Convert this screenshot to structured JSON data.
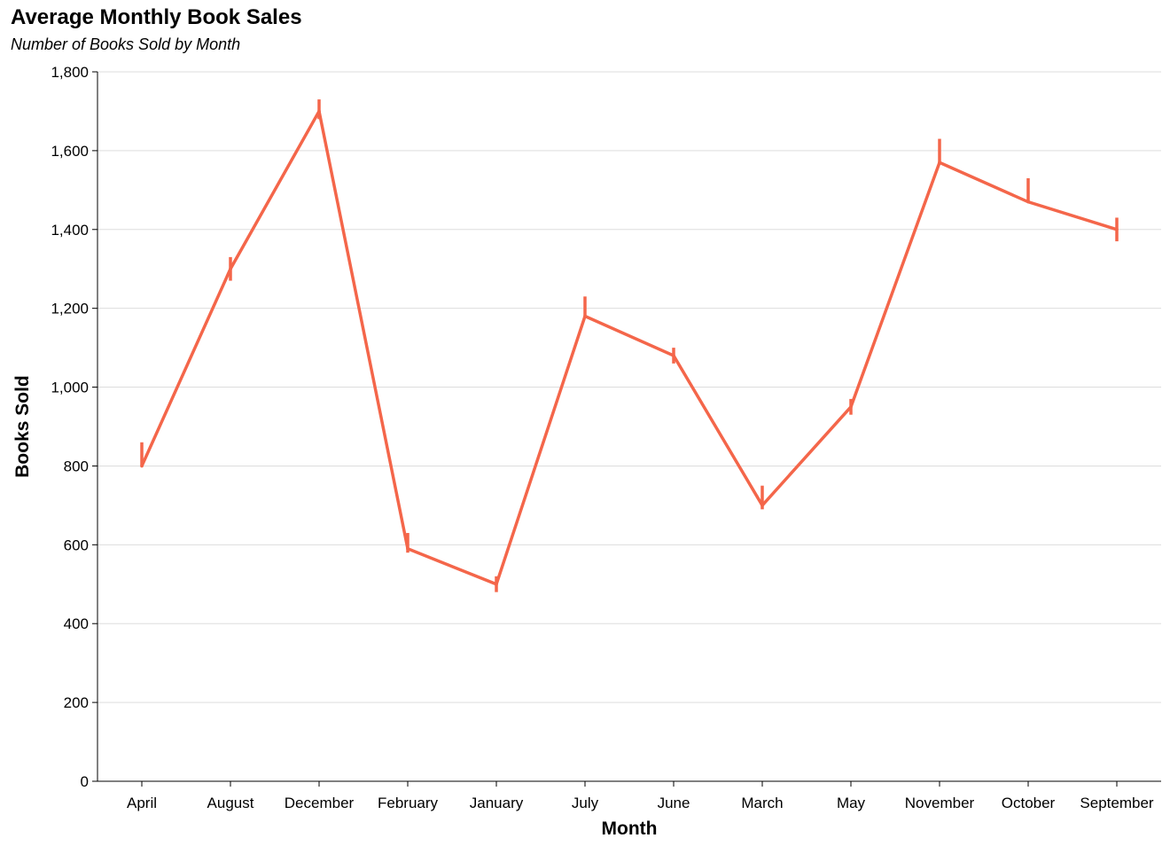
{
  "chart_data": {
    "type": "line",
    "title": "Average Monthly Book Sales",
    "subtitle": "Number of Books Sold by Month",
    "xlabel": "Month",
    "ylabel": "Books Sold",
    "ylim": [
      0,
      1800
    ],
    "y_ticks": [
      0,
      200,
      400,
      600,
      800,
      1000,
      1200,
      1400,
      1600,
      1800
    ],
    "y_tick_labels": [
      "0",
      "200",
      "400",
      "600",
      "800",
      "1,000",
      "1,200",
      "1,400",
      "1,600",
      "1,800"
    ],
    "grid": true,
    "categories": [
      "April",
      "August",
      "December",
      "February",
      "January",
      "July",
      "June",
      "March",
      "May",
      "November",
      "October",
      "September"
    ],
    "series": [
      {
        "values": [
          800,
          1300,
          1700,
          590,
          500,
          1180,
          1080,
          700,
          950,
          1570,
          1470,
          1400
        ],
        "error_high": [
          860,
          1330,
          1730,
          630,
          520,
          1230,
          1100,
          750,
          970,
          1630,
          1530,
          1430
        ],
        "error_low": [
          800,
          1270,
          1680,
          580,
          480,
          1180,
          1060,
          690,
          930,
          1570,
          1470,
          1370
        ],
        "color": "#f4664a"
      }
    ]
  }
}
